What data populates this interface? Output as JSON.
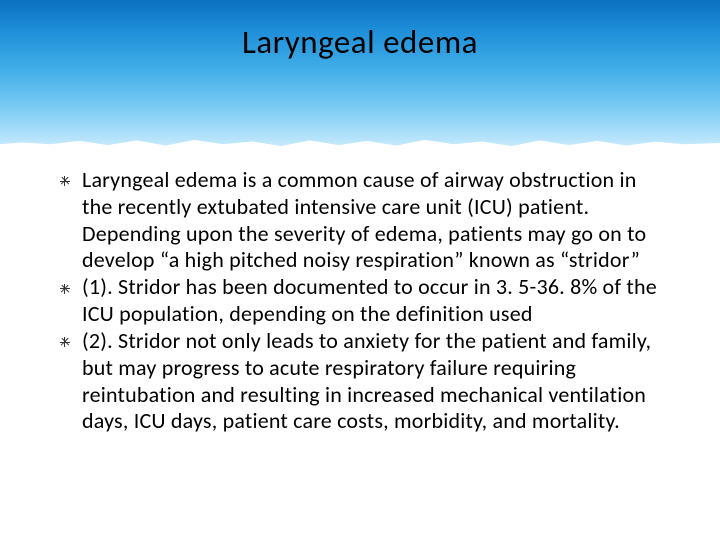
{
  "header": {
    "title": "Laryngeal edema",
    "title_fontsize": 33,
    "title_color": "#000000",
    "gradient_top": "#0a6fbf",
    "gradient_bottom": "#e0f3fd"
  },
  "content": {
    "bullet_fontsize": 22,
    "line_height": 1.22,
    "text_color": "#000000",
    "items": [
      "Laryngeal edema is a common cause of airway obstruction in the recently extubated intensive care unit (ICU) patient. Depending upon the severity of edema, patients may go on to develop “a high pitched noisy respiration” known as “stridor”",
      "(1). Stridor has been documented to occur in 3. 5-36. 8% of the ICU population, depending on the definition used",
      "(2). Stridor not only leads to anxiety for the patient and family, but may progress to acute respiratory failure requiring reintubation and resulting in increased mechanical ventilation days, ICU days, patient care costs, morbidity, and mortality."
    ]
  }
}
